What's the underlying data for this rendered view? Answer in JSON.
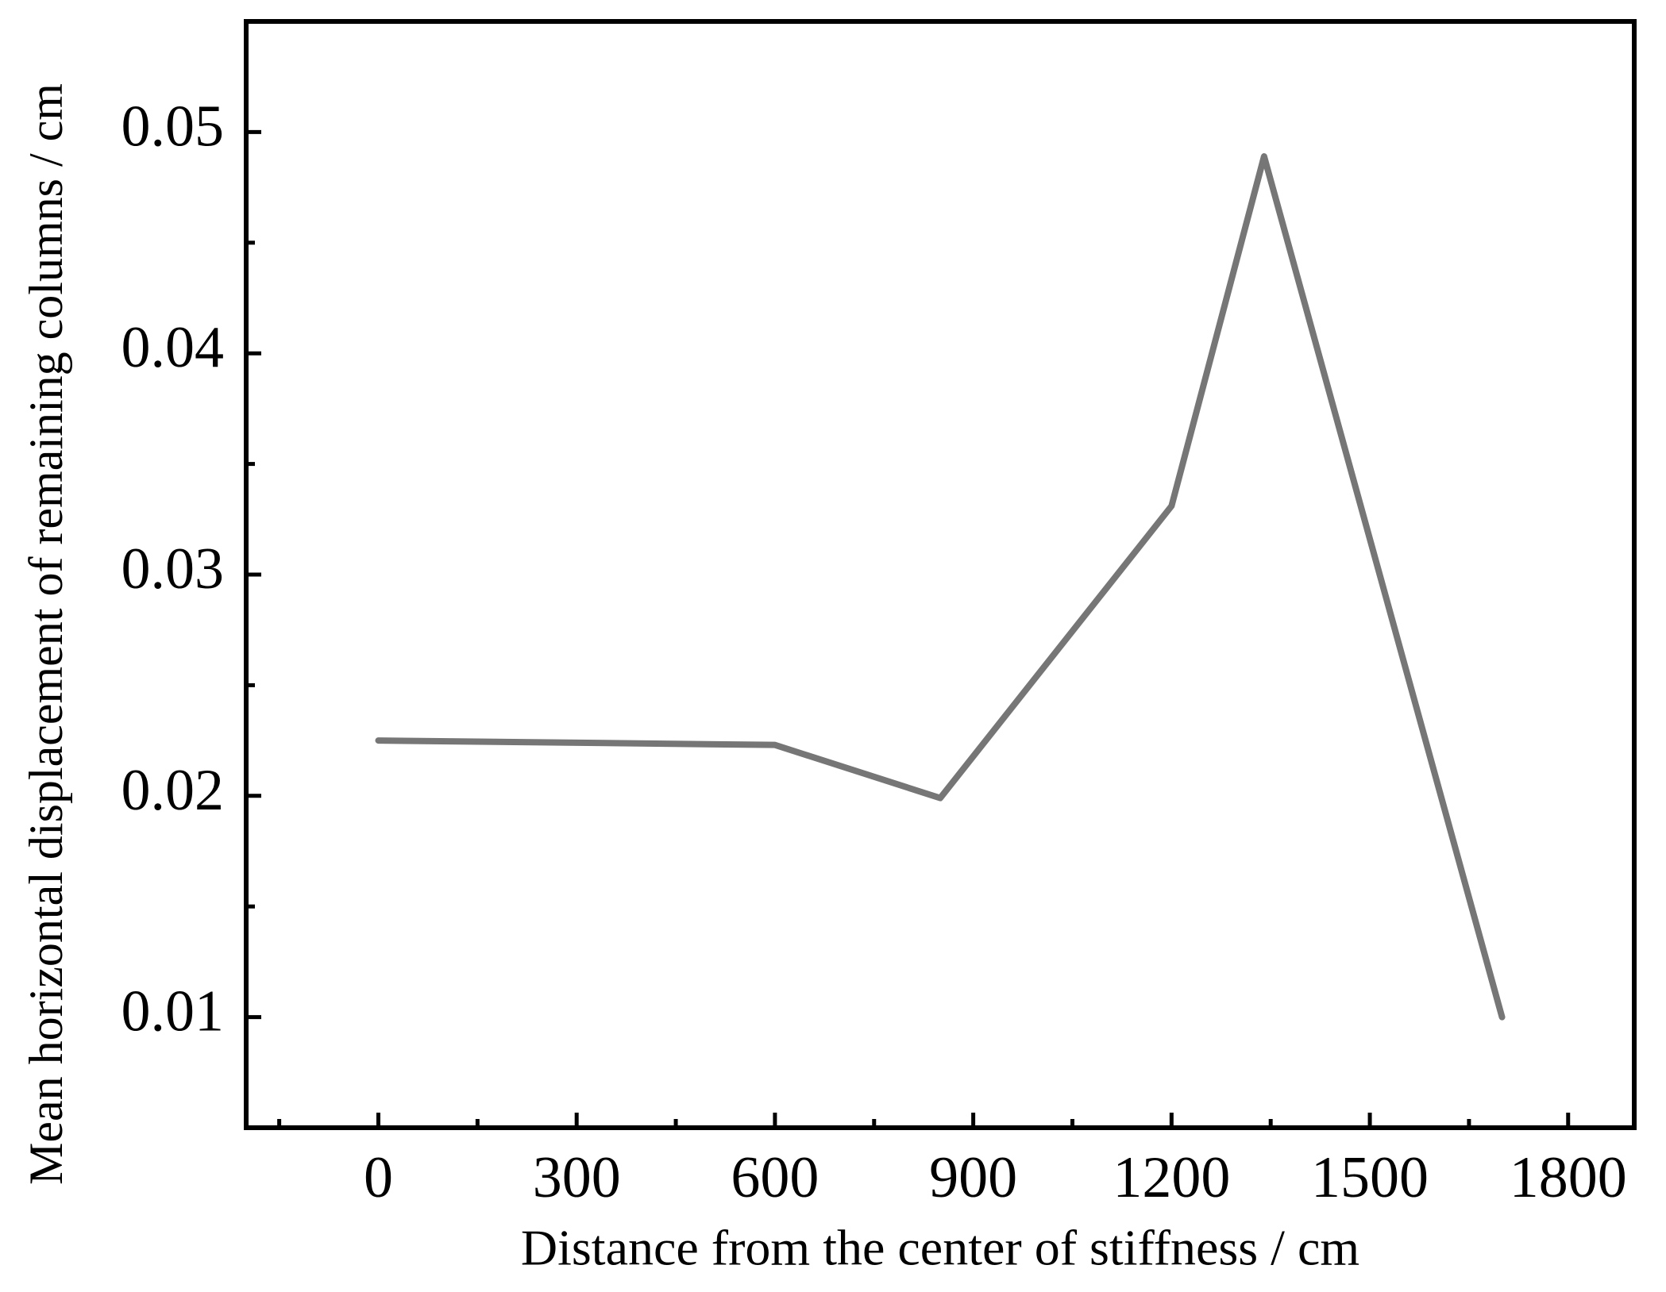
{
  "chart_data": {
    "type": "line",
    "x_label": "Distance from the center of stiffness / cm",
    "y_label": "Mean horizontal displacement of remaining columns / cm",
    "x": [
      0,
      600,
      850,
      1200,
      1340,
      1700
    ],
    "series": [
      {
        "color": "#767676",
        "values": [
          0.0225,
          0.0223,
          0.0199,
          0.0331,
          0.0489,
          0.01
        ]
      }
    ],
    "xlim": [
      -200,
      1900
    ],
    "xticks": [
      0,
      300,
      600,
      900,
      1200,
      1500,
      1800
    ],
    "xminorticks": [
      -150,
      150,
      450,
      750,
      1050,
      1350,
      1650
    ],
    "ylim": [
      0.005,
      0.055
    ],
    "yticks": [
      0.01,
      0.02,
      0.03,
      0.04,
      0.05
    ],
    "yminorticks": [
      0.015,
      0.025,
      0.035,
      0.045
    ],
    "grid": false
  }
}
